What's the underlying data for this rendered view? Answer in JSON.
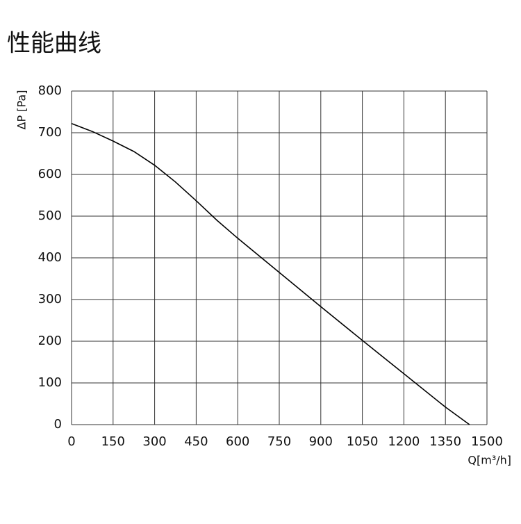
{
  "chart_data": {
    "type": "line",
    "title": "性能曲线",
    "y_label": "ΔP [Pa]",
    "x_label": "Q[m³/h]",
    "x": [
      0,
      75,
      150,
      225,
      300,
      375,
      450,
      525,
      600,
      750,
      900,
      1050,
      1200,
      1350,
      1437
    ],
    "series": [
      {
        "name": "ΔP",
        "color": "#000000",
        "values": [
          722,
          703,
          680,
          655,
          622,
          582,
          537,
          490,
          447,
          365,
          283,
          202,
          122,
          42,
          0
        ]
      }
    ],
    "xlim": [
      0,
      1500
    ],
    "xticks": [
      0,
      150,
      300,
      450,
      600,
      750,
      900,
      1050,
      1200,
      1350,
      1500
    ],
    "ylim": [
      0,
      800
    ],
    "yticks": [
      0,
      100,
      200,
      300,
      400,
      500,
      600,
      700,
      800
    ],
    "grid": true
  }
}
